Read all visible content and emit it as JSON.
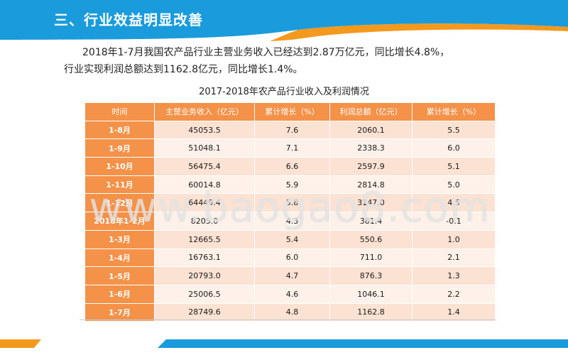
{
  "header": {
    "title": "三、行业效益明显改善"
  },
  "intro": {
    "line1": "2018年1-7月我国农产品行业主营业务收入已经达到2.87万亿元，同比增长4.8%，",
    "line2": "行业实现利润总额达到1162.8亿元，同比增长1.4%。"
  },
  "table": {
    "caption": "2017-2018年农产品行业收入及利润情况",
    "headers": [
      "时间",
      "主营业务收入（亿元）",
      "累计增长（%）",
      "利润总额（亿元）",
      "累计增长（%）"
    ],
    "rows": [
      [
        "1-8月",
        "45053.5",
        "7.6",
        "2060.1",
        "5.5"
      ],
      [
        "1-9月",
        "51048.1",
        "7.1",
        "2338.3",
        "6.0"
      ],
      [
        "1-10月",
        "56475.4",
        "6.6",
        "2597.9",
        "5.1"
      ],
      [
        "1-11月",
        "60014.8",
        "5.9",
        "2814.8",
        "5.0"
      ],
      [
        "1-12月",
        "64449.4",
        "5.8",
        "3147.0",
        "4.5"
      ],
      [
        "2018年1-2月",
        "8205.0",
        "4.3",
        "381.4",
        "-0.1"
      ],
      [
        "1-3月",
        "12665.5",
        "5.4",
        "550.6",
        "1.0"
      ],
      [
        "1-4月",
        "16763.1",
        "6.0",
        "711.0",
        "2.1"
      ],
      [
        "1-5月",
        "20793.0",
        "4.7",
        "876.3",
        "1.3"
      ],
      [
        "1-6月",
        "25006.5",
        "4.6",
        "1046.1",
        "2.2"
      ],
      [
        "1-7月",
        "28749.6",
        "4.8",
        "1162.8",
        "1.4"
      ]
    ]
  },
  "watermark": {
    "text": "www.baogao8.com"
  },
  "colors": {
    "header_blue": "#1a9bdc",
    "header_orange": "#f39a1e",
    "table_orange": "#f5924a",
    "row_light": "#fdf1ea",
    "row_dark": "#fbe2d3",
    "footer_blue": "#1a9bdc",
    "footer_orange": "#f39a1e"
  }
}
